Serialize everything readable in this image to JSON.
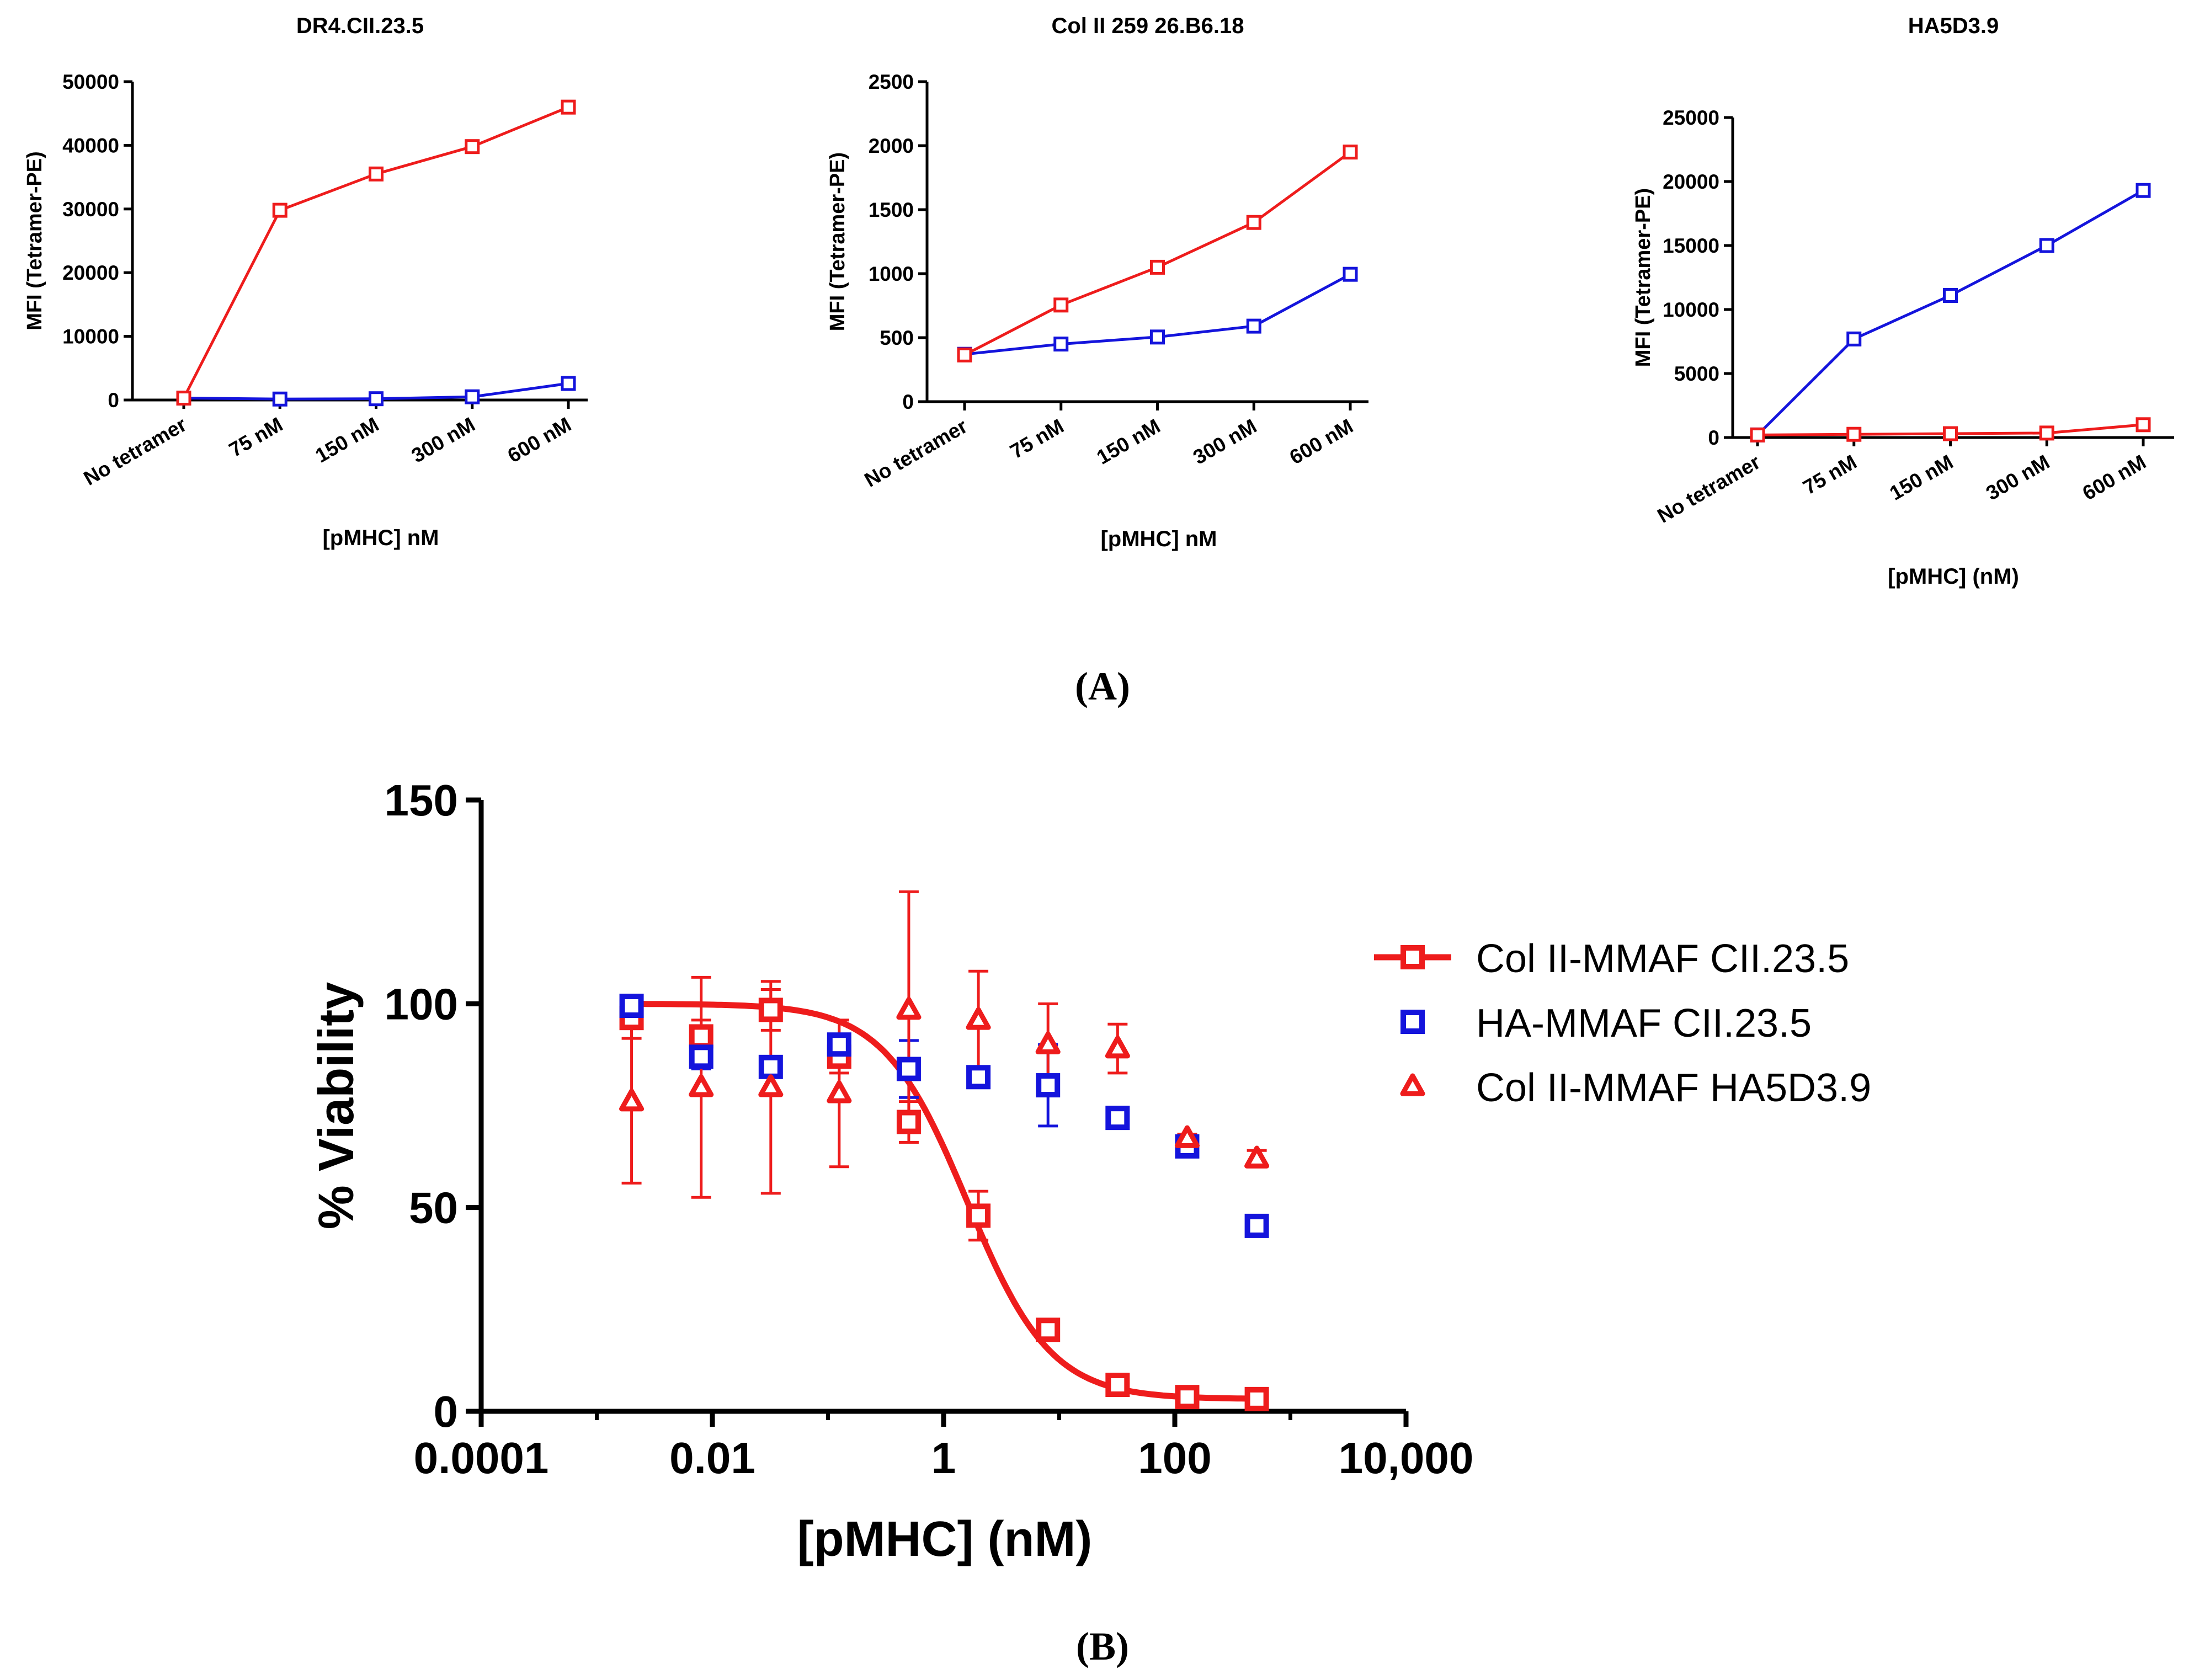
{
  "panels": {
    "A": "(A)",
    "B": "(B)"
  },
  "colors": {
    "red": "#ee1c1c",
    "blue": "#1414dc",
    "axis": "#000000"
  },
  "chart_data": [
    {
      "id": "dr4",
      "type": "line",
      "title": "DR4.CII.23.5",
      "ylabel": "MFI (Tetramer-PE)",
      "xlabel": "[pMHC] nM",
      "categories": [
        "No tetramer",
        "75 nM",
        "150 nM",
        "300 nM",
        "600 nM"
      ],
      "ylim": [
        0,
        50000
      ],
      "yticks": [
        0,
        10000,
        20000,
        30000,
        40000,
        50000
      ],
      "ytick_labels": [
        "0",
        "10000",
        "20000",
        "30000",
        "40000",
        "50000"
      ],
      "series": [
        {
          "name": "blue",
          "color": "#1414dc",
          "values": [
            300,
            150,
            200,
            500,
            2600
          ]
        },
        {
          "name": "red",
          "color": "#ee1c1c",
          "values": [
            300,
            29800,
            35500,
            39800,
            46000
          ]
        }
      ]
    },
    {
      "id": "col2",
      "type": "line",
      "title": "Col II 259 26.B6.18",
      "ylabel": "MFI (Tetramer-PE)",
      "xlabel": "[pMHC] nM",
      "categories": [
        "No tetramer",
        "75 nM",
        "150 nM",
        "300 nM",
        "600 nM"
      ],
      "ylim": [
        0,
        2500
      ],
      "yticks": [
        0,
        500,
        1000,
        1500,
        2000,
        2500
      ],
      "ytick_labels": [
        "0",
        "500",
        "1000",
        "1500",
        "2000",
        "2500"
      ],
      "series": [
        {
          "name": "blue",
          "color": "#1414dc",
          "values": [
            370,
            450,
            505,
            590,
            995
          ]
        },
        {
          "name": "red",
          "color": "#ee1c1c",
          "values": [
            365,
            755,
            1050,
            1400,
            1950
          ]
        }
      ]
    },
    {
      "id": "ha5",
      "type": "line",
      "title": "HA5D3.9",
      "ylabel": "MFI (Tetramer-PE)",
      "xlabel": "[pMHC] (nM)",
      "categories": [
        "No tetramer",
        "75 nM",
        "150 nM",
        "300 nM",
        "600 nM"
      ],
      "ylim": [
        0,
        25000
      ],
      "yticks": [
        0,
        5000,
        10000,
        15000,
        20000,
        25000
      ],
      "ytick_labels": [
        "0",
        "5000",
        "10000",
        "15000",
        "20000",
        "25000"
      ],
      "series": [
        {
          "name": "blue",
          "color": "#1414dc",
          "values": [
            200,
            7700,
            11100,
            15000,
            19300
          ]
        },
        {
          "name": "red",
          "color": "#ee1c1c",
          "values": [
            200,
            250,
            300,
            350,
            1000
          ]
        }
      ]
    },
    {
      "id": "viability",
      "type": "scatter",
      "xscale": "log",
      "xlim": [
        0.0001,
        10000
      ],
      "xticks": [
        0.0001,
        0.01,
        1,
        100,
        10000
      ],
      "xtick_labels": [
        "0.0001",
        "0.01",
        "1",
        "100",
        "10,000"
      ],
      "ylim": [
        0,
        150
      ],
      "yticks": [
        0,
        50,
        100,
        150
      ],
      "ytick_labels": [
        "0",
        "50",
        "100",
        "150"
      ],
      "xlabel": "[pMHC] (nM)",
      "ylabel": "% Viability",
      "legend_position": "right",
      "x": [
        0.002,
        0.008,
        0.032,
        0.125,
        0.5,
        2,
        8,
        32,
        128,
        512
      ],
      "series": [
        {
          "name": "Col II-MMAF CII.23.5",
          "color": "#ee1c1c",
          "marker": "square",
          "fit": true,
          "fit_params": {
            "top": 100,
            "bottom": 3,
            "ic50": 1.6,
            "hill": 1.2
          },
          "values": [
            96.5,
            92,
            98.5,
            87,
            71,
            48,
            20,
            6.5,
            3.5,
            3
          ],
          "errors": [
            5,
            4,
            5,
            4,
            5,
            6,
            2,
            1,
            1,
            1
          ]
        },
        {
          "name": "HA-MMAF CII.23.5",
          "color": "#1414dc",
          "marker": "square",
          "fit": false,
          "values": [
            99.5,
            87,
            84.5,
            90,
            84,
            82,
            80,
            72,
            65,
            45.5
          ],
          "errors": [
            2,
            3,
            2,
            2,
            7,
            2,
            10,
            2,
            1,
            1
          ]
        },
        {
          "name": "Col II-MMAF HA5D3.9",
          "color": "#ee1c1c",
          "marker": "triangle",
          "fit": false,
          "values": [
            76,
            79.5,
            79.5,
            78,
            98.5,
            96,
            90,
            89,
            67,
            62
          ],
          "errors": [
            20,
            27,
            26,
            18,
            29,
            12,
            10,
            6,
            1,
            2
          ]
        }
      ]
    }
  ]
}
